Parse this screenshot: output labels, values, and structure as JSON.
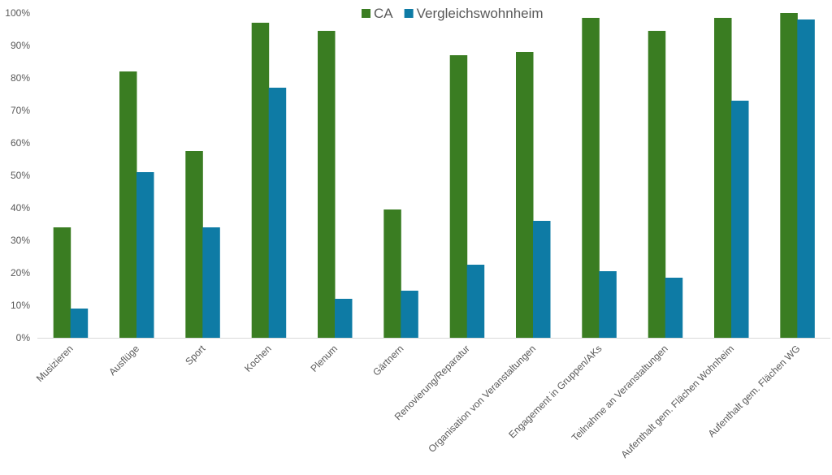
{
  "chart_data": {
    "type": "bar",
    "categories": [
      "Musizieren",
      "Ausflüge",
      "Sport",
      "Kochen",
      "Plenum",
      "Gärtnern",
      "Renovierung/Reparatur",
      "Organisation von Veranstaltungen",
      "Engagement in Gruppen/AKs",
      "Teilnahme an Veranstaltungen",
      "Aufenthalt gem. Flächen Wohnheim",
      "Aufenthalt gem. Flächen WG"
    ],
    "series": [
      {
        "name": "CA",
        "color": "#3a7d22",
        "values": [
          34,
          82,
          57.5,
          97,
          94.5,
          39.5,
          87,
          88,
          98.5,
          94.5,
          98.5,
          100
        ]
      },
      {
        "name": "Vergleichswohnheim",
        "color": "#0e7ba5",
        "values": [
          9,
          51,
          34,
          77,
          12,
          14.5,
          22.5,
          36,
          20.5,
          18.5,
          73,
          98
        ]
      }
    ],
    "ylim": [
      0,
      100
    ],
    "yticks": [
      "0%",
      "10%",
      "20%",
      "30%",
      "40%",
      "50%",
      "60%",
      "70%",
      "80%",
      "90%",
      "100%"
    ],
    "title": "",
    "xlabel": "",
    "ylabel": "",
    "legend_position": "top-center",
    "grid": false
  }
}
